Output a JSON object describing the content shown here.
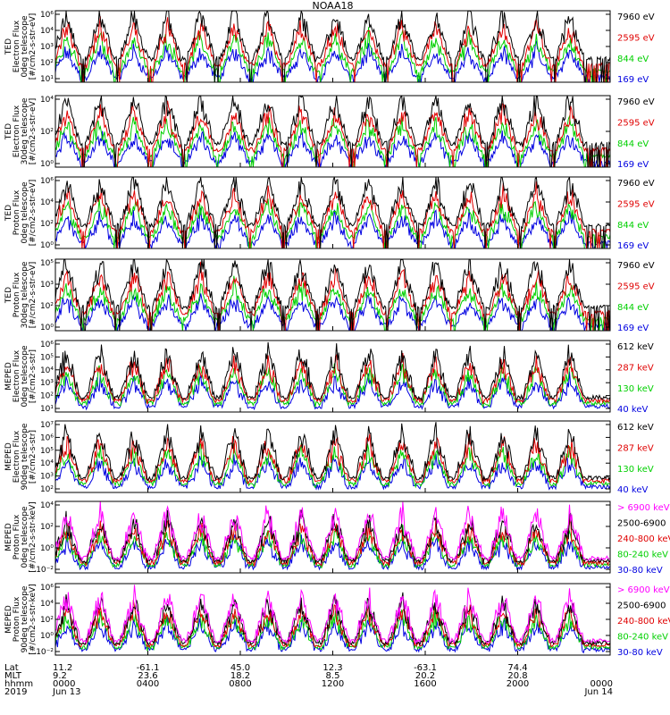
{
  "chart_data": {
    "type": "line",
    "title": "NOAA18",
    "panels": [
      {
        "ylabel": [
          "TED",
          "Electron Flux",
          "0deg telescope",
          "[#/cm2-s-str-eV]"
        ],
        "ymin": 1,
        "ymax": 6,
        "tick_labels": [
          "10⁶",
          "10⁴",
          "10³",
          "10²",
          "10¹"
        ],
        "series": [
          {
            "name": "7960 eV",
            "color": "#000000"
          },
          {
            "name": "2595 eV",
            "color": "#e00000"
          },
          {
            "name": "844 eV",
            "color": "#00d000"
          },
          {
            "name": "169 eV",
            "color": "#0000e0"
          }
        ]
      },
      {
        "ylabel": [
          "TED",
          "Electron Flux",
          "30deg telescope",
          "[#/cm2-s-str-eV]"
        ],
        "ymin": 0,
        "ymax": 5,
        "tick_labels": [
          "10⁴",
          "10²",
          "10⁰"
        ],
        "series": [
          {
            "name": "7960 eV",
            "color": "#000000"
          },
          {
            "name": "2595 eV",
            "color": "#e00000"
          },
          {
            "name": "844 eV",
            "color": "#00d000"
          },
          {
            "name": "169 eV",
            "color": "#0000e0"
          }
        ]
      },
      {
        "ylabel": [
          "TED",
          "Proton Flux",
          "0deg telescope",
          "[#/cm2-s-str-eV]"
        ],
        "ymin": 0,
        "ymax": 6,
        "tick_labels": [
          "10⁶",
          "10⁴",
          "10²",
          "10⁰"
        ],
        "series": [
          {
            "name": "7960 eV",
            "color": "#000000"
          },
          {
            "name": "2595 eV",
            "color": "#e00000"
          },
          {
            "name": "844 eV",
            "color": "#00d000"
          },
          {
            "name": "169 eV",
            "color": "#0000e0"
          }
        ]
      },
      {
        "ylabel": [
          "TED",
          "Proton Flux",
          "30deg telescope",
          "[#/cm2-s-str-eV]"
        ],
        "ymin": 0,
        "ymax": 5,
        "tick_labels": [
          "10⁵",
          "10³",
          "10²",
          "10⁰"
        ],
        "series": [
          {
            "name": "7960 eV",
            "color": "#000000"
          },
          {
            "name": "2595 eV",
            "color": "#e00000"
          },
          {
            "name": "844 eV",
            "color": "#00d000"
          },
          {
            "name": "169 eV",
            "color": "#0000e0"
          }
        ]
      },
      {
        "ylabel": [
          "MEPED",
          "Electron Flux",
          "0deg telescope",
          "[#/cm2-s-str]"
        ],
        "ymin": 1,
        "ymax": 6,
        "tick_labels": [
          "10⁶",
          "10⁵",
          "10⁴",
          "10³",
          "10²",
          "10¹"
        ],
        "series": [
          {
            "name": "612 keV",
            "color": "#000000"
          },
          {
            "name": "287 keV",
            "color": "#e00000"
          },
          {
            "name": "130 keV",
            "color": "#00d000"
          },
          {
            "name": "40 keV",
            "color": "#0000e0"
          }
        ]
      },
      {
        "ylabel": [
          "MEPED",
          "Electron Flux",
          "90deg telescope",
          "[#/cm2-s-str]"
        ],
        "ymin": 1,
        "ymax": 7,
        "tick_labels": [
          "10⁷",
          "10⁶",
          "10⁵",
          "10⁴",
          "10³",
          "10²"
        ],
        "series": [
          {
            "name": "612 keV",
            "color": "#000000"
          },
          {
            "name": "287 keV",
            "color": "#e00000"
          },
          {
            "name": "130 keV",
            "color": "#00d000"
          },
          {
            "name": "40 keV",
            "color": "#0000e0"
          }
        ]
      },
      {
        "ylabel": [
          "MEPED",
          "Proton Flux",
          "0deg telescope",
          "[#/cm2-s-str-keV]"
        ],
        "ymin": -2,
        "ymax": 6,
        "tick_labels": [
          "10⁴",
          "10²",
          "10⁰",
          "10⁻²"
        ],
        "series": [
          {
            "name": "> 6900 keV",
            "color": "#ff00ff"
          },
          {
            "name": "2500-6900",
            "color": "#000000"
          },
          {
            "name": "240-800 keV",
            "color": "#e00000"
          },
          {
            "name": "80-240 keV",
            "color": "#00d000"
          },
          {
            "name": "30-80 keV",
            "color": "#0000e0"
          }
        ]
      },
      {
        "ylabel": [
          "MEPED",
          "Proton Flux",
          "90deg telescope",
          "[#/cm2-s-str-keV]"
        ],
        "ymin": -2,
        "ymax": 6,
        "tick_labels": [
          "10⁶",
          "10⁴",
          "10²",
          "10⁰",
          "10⁻²"
        ],
        "series": [
          {
            "name": "> 6900 keV",
            "color": "#ff00ff"
          },
          {
            "name": "2500-6900",
            "color": "#000000"
          },
          {
            "name": "240-800 keV",
            "color": "#e00000"
          },
          {
            "name": "80-240 keV",
            "color": "#00d000"
          },
          {
            "name": "30-80 keV",
            "color": "#0000e0"
          }
        ]
      }
    ],
    "xaxis": {
      "row_labels": [
        "Lat",
        "MLT",
        "hhmm",
        "2019"
      ],
      "ticks": [
        {
          "lat": "11.2",
          "mlt": "9.2",
          "hhmm": "0000",
          "date": "Jun 13"
        },
        {
          "lat": "-61.1",
          "mlt": "23.6",
          "hhmm": "0400",
          "date": ""
        },
        {
          "lat": "45.0",
          "mlt": "18.2",
          "hhmm": "0800",
          "date": ""
        },
        {
          "lat": "12.3",
          "mlt": "8.5",
          "hhmm": "1200",
          "date": ""
        },
        {
          "lat": "-63.1",
          "mlt": "20.2",
          "hhmm": "1600",
          "date": ""
        },
        {
          "lat": "74.4",
          "mlt": "20.8",
          "hhmm": "2000",
          "date": ""
        },
        {
          "lat": "",
          "mlt": "",
          "hhmm": "0000",
          "date": "Jun 14"
        }
      ]
    }
  }
}
